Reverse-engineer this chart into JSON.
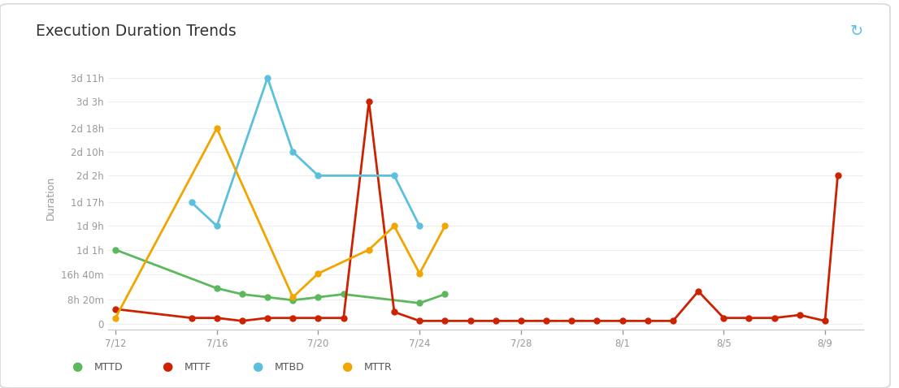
{
  "title": "Execution Duration Trends",
  "ylabel": "Duration",
  "background_color": "#ffffff",
  "frame_color": "#e0e0e0",
  "title_color": "#333333",
  "tick_color": "#999999",
  "grid_color": "#eeeeee",
  "ytick_labels": [
    "0",
    "8h 20m",
    "16h 40m",
    "1d 1h",
    "1d 9h",
    "1d 17h",
    "2d 2h",
    "2d 10h",
    "2d 18h",
    "3d 3h",
    "3d 11h"
  ],
  "ytick_hours": [
    0,
    8.333,
    16.667,
    25,
    33,
    41,
    50,
    58,
    66,
    75,
    83
  ],
  "xtick_labels": [
    "7/12",
    "7/16",
    "7/20",
    "7/24",
    "7/28",
    "8/1",
    "8/5",
    "8/9"
  ],
  "xtick_days": [
    0,
    4,
    8,
    12,
    16,
    20,
    24,
    28
  ],
  "xlim": [
    -0.3,
    29.5
  ],
  "ylim": [
    -2,
    87
  ],
  "series": {
    "MTTD": {
      "color": "#5cb85c",
      "x": [
        0,
        4,
        5,
        6,
        7,
        8,
        9,
        12,
        13
      ],
      "y": [
        25,
        12,
        10,
        9,
        8,
        9,
        10,
        7,
        10
      ]
    },
    "MTTF": {
      "color": "#cc2200",
      "x": [
        0,
        3,
        4,
        5,
        6,
        7,
        8,
        9,
        10,
        11,
        12,
        13,
        14,
        15,
        16,
        17,
        18,
        19,
        20,
        21,
        22,
        23,
        24,
        25,
        26,
        27,
        28,
        28.5
      ],
      "y": [
        5,
        2,
        2,
        1,
        2,
        2,
        2,
        2,
        75,
        4,
        1,
        1,
        1,
        1,
        1,
        1,
        1,
        1,
        1,
        1,
        1,
        11,
        2,
        2,
        2,
        3,
        1,
        50
      ]
    },
    "MTBD": {
      "color": "#5bc0de",
      "x": [
        3,
        4,
        6,
        7,
        8,
        11,
        12
      ],
      "y": [
        41,
        33,
        83,
        58,
        50,
        50,
        33
      ]
    },
    "MTTR": {
      "color": "#f0a500",
      "x": [
        0,
        4,
        7,
        8,
        10,
        11,
        12,
        13
      ],
      "y": [
        2,
        66,
        9,
        17,
        25,
        33,
        17,
        33
      ]
    }
  },
  "legend": [
    "MTTD",
    "MTTF",
    "MTBD",
    "MTTR"
  ],
  "legend_colors": [
    "#5cb85c",
    "#cc2200",
    "#5bc0de",
    "#f0a500"
  ]
}
